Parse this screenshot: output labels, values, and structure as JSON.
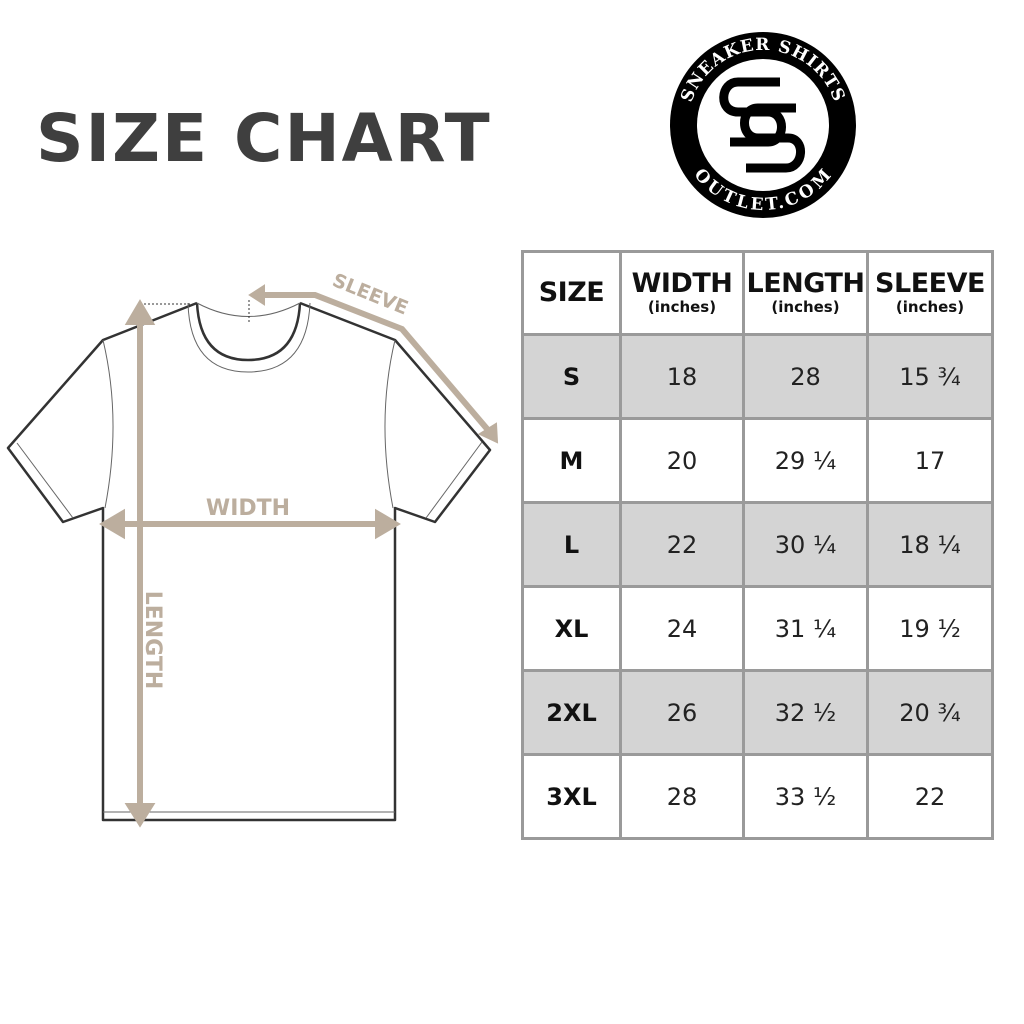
{
  "title": "SIZE CHART",
  "logo": {
    "top_text": "SNEAKER SHIRTS",
    "bottom_text": "OUTLET.COM",
    "monogram": "SS"
  },
  "diagram": {
    "sleeve_label": "SLEEVE",
    "width_label": "WIDTH",
    "length_label": "LENGTH",
    "arrow_color": "#bcae9e"
  },
  "table": {
    "headers": [
      {
        "label": "SIZE",
        "unit": ""
      },
      {
        "label": "WIDTH",
        "unit": "(inches)"
      },
      {
        "label": "LENGTH",
        "unit": "(inches)"
      },
      {
        "label": "SLEEVE",
        "unit": "(inches)"
      }
    ],
    "rows": [
      [
        "S",
        "18",
        "28",
        "15 ¾"
      ],
      [
        "M",
        "20",
        "29 ¼",
        "17"
      ],
      [
        "L",
        "22",
        "30 ¼",
        "18 ¼"
      ],
      [
        "XL",
        "24",
        "31 ¼",
        "19 ½"
      ],
      [
        "2XL",
        "26",
        "32 ½",
        "20 ¾"
      ],
      [
        "3XL",
        "28",
        "33 ½",
        "22"
      ]
    ],
    "shade_color": "#d4d4d4",
    "border_color": "#9a9a9a"
  }
}
